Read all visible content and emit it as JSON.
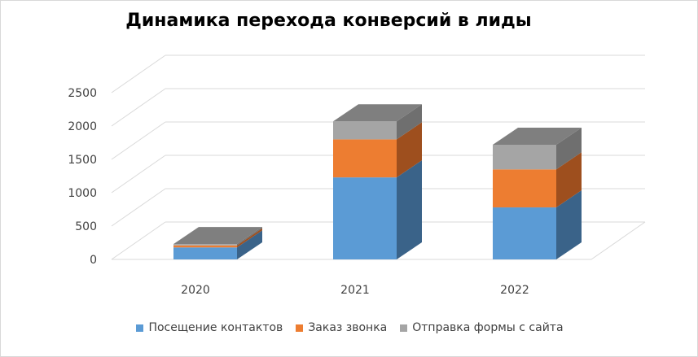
{
  "chart_data": {
    "type": "bar",
    "stacked": true,
    "three_d": true,
    "title": "Динамика перехода конверсий в лиды",
    "xlabel": "",
    "ylabel": "",
    "categories": [
      "2020",
      "2021",
      "2022"
    ],
    "y_ticks": [
      "0",
      "500",
      "1000",
      "1500",
      "2000",
      "2500"
    ],
    "ylim": [
      0,
      2500
    ],
    "grid": true,
    "legend_position": "bottom",
    "series": [
      {
        "name": "Посещение контактов",
        "values": [
          180,
          1230,
          780
        ],
        "color": "#5B9BD5",
        "side_color": "#3A6389"
      },
      {
        "name": "Заказ звонка",
        "values": [
          30,
          570,
          570
        ],
        "color": "#ED7D31",
        "side_color": "#9E4F1E"
      },
      {
        "name": "Отправка формы с сайта",
        "values": [
          20,
          270,
          370
        ],
        "color": "#A5A5A5",
        "side_color": "#6F6F6F"
      }
    ],
    "top_color": "#7F7F7F",
    "grid_color": "#D9D9D9"
  }
}
